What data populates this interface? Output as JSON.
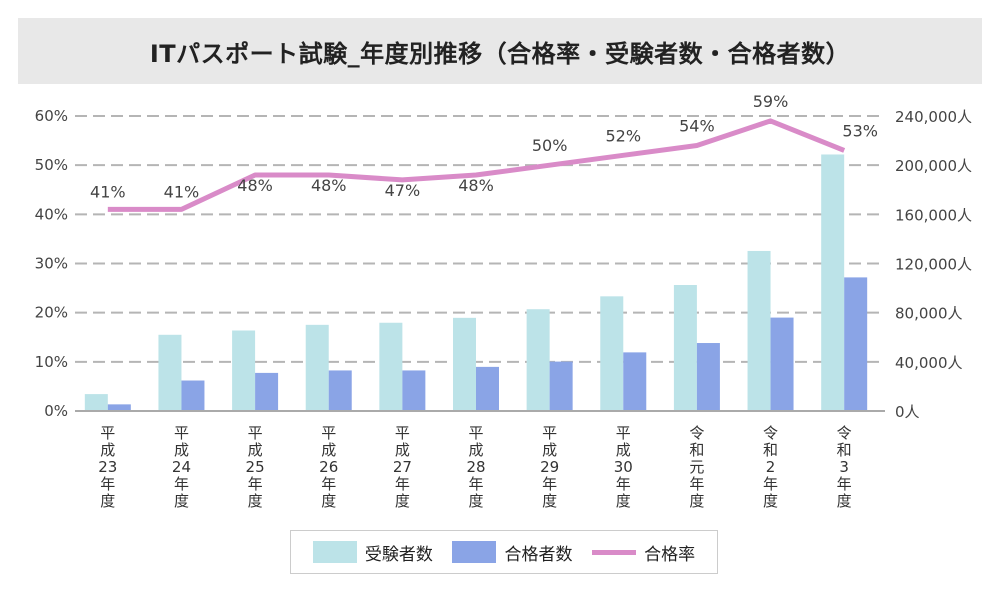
{
  "chart_data": {
    "type": "bar",
    "title": "ITパスポート試験_年度別推移（合格率・受験者数・合格者数）",
    "categories": [
      [
        "平成",
        "23",
        "年度"
      ],
      [
        "平成",
        "24",
        "年度"
      ],
      [
        "平成",
        "25",
        "年度"
      ],
      [
        "平成",
        "26",
        "年度"
      ],
      [
        "平成",
        "27",
        "年度"
      ],
      [
        "平成",
        "28",
        "年度"
      ],
      [
        "平成",
        "29",
        "年度"
      ],
      [
        "平成",
        "30",
        "年度"
      ],
      [
        "令和",
        "元",
        "年度"
      ],
      [
        "令和",
        "2",
        "年度"
      ],
      [
        "令和",
        "3",
        "年度"
      ]
    ],
    "series": [
      {
        "name": "受験者数",
        "type": "bar",
        "axis": "right",
        "color": "#bce3e8",
        "values": [
          13750,
          62000,
          65500,
          70100,
          71800,
          75800,
          82800,
          93300,
          102500,
          130200,
          208700
        ]
      },
      {
        "name": "合格者数",
        "type": "bar",
        "axis": "right",
        "color": "#8aa4e6",
        "values": [
          5400,
          24800,
          31000,
          33000,
          33000,
          35900,
          40200,
          47700,
          55300,
          76000,
          108700
        ]
      },
      {
        "name": "合格率",
        "type": "line",
        "axis": "left",
        "color": "#d98bc8",
        "values": [
          41,
          41,
          48,
          48,
          47,
          48,
          50,
          52,
          54,
          59,
          53
        ],
        "labels": [
          "41%",
          "41%",
          "48%",
          "48%",
          "47%",
          "48%",
          "50%",
          "52%",
          "54%",
          "59%",
          "53%"
        ]
      }
    ],
    "y_left": {
      "range": [
        0,
        60
      ],
      "ticks": [
        "0%",
        "10%",
        "20%",
        "30%",
        "40%",
        "50%",
        "60%"
      ]
    },
    "y_right": {
      "range": [
        0,
        240000
      ],
      "ticks": [
        "0人",
        "40,000人",
        "80,000人",
        "120,000人",
        "160,000人",
        "200,000人",
        "240,000人"
      ]
    },
    "grid": true,
    "legend_position": "bottom"
  }
}
